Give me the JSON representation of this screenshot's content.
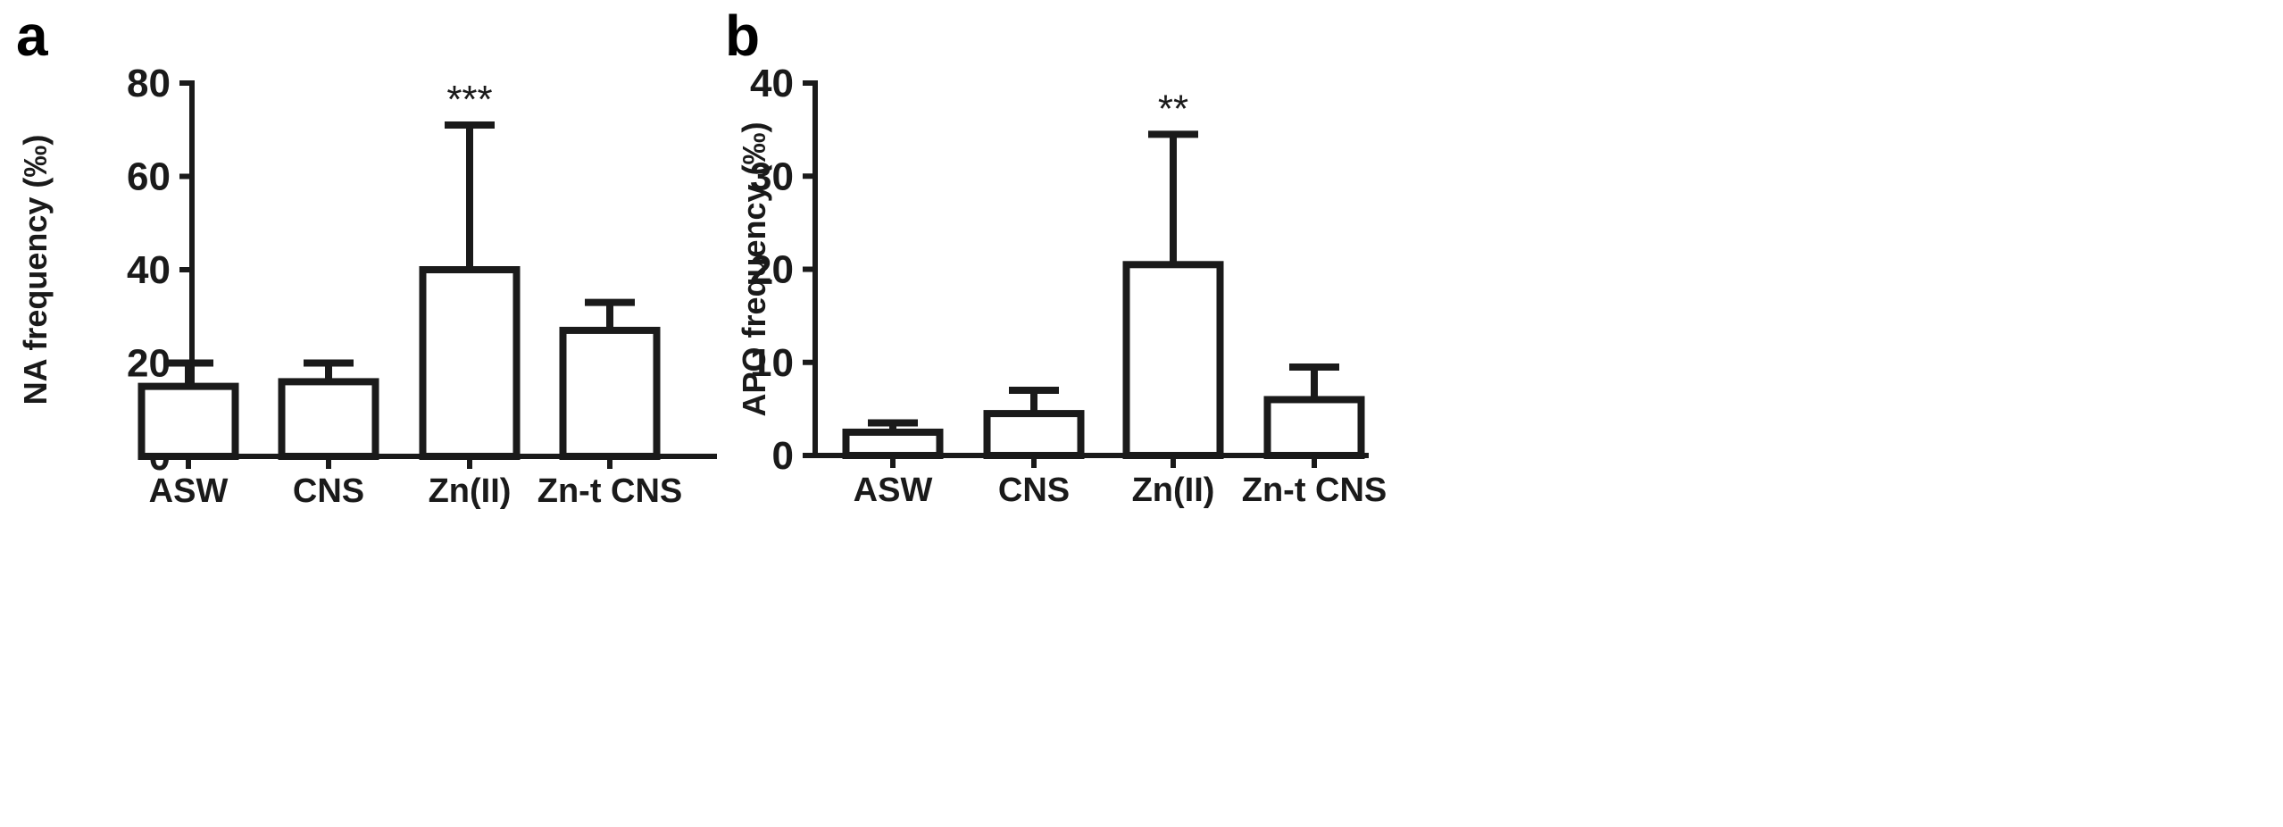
{
  "chart_data": [
    {
      "panel_label": "a",
      "type": "bar",
      "categories": [
        "ASW",
        "CNS",
        "Zn(II)",
        "Zn-t CNS"
      ],
      "values": [
        15,
        16,
        40,
        27
      ],
      "errors": [
        5,
        4,
        31,
        6
      ],
      "annotations": [
        "",
        "",
        "***",
        ""
      ],
      "ylabel": "NA frequency (‰)",
      "xlabel": "",
      "ylim": [
        0,
        80
      ],
      "yticks": [
        0,
        20,
        40,
        60,
        80
      ],
      "grid": false
    },
    {
      "panel_label": "b",
      "type": "bar",
      "categories": [
        "ASW",
        "CNS",
        "Zn(II)",
        "Zn-t CNS"
      ],
      "values": [
        2.5,
        4.5,
        20.5,
        6
      ],
      "errors": [
        1,
        2.5,
        14,
        3.5
      ],
      "annotations": [
        "",
        "",
        "**",
        ""
      ],
      "ylabel": "APO frequency (‰)",
      "xlabel": "",
      "ylim": [
        0,
        40
      ],
      "yticks": [
        0,
        10,
        20,
        30,
        40
      ],
      "grid": false
    }
  ],
  "colors": {
    "ink": "#1a1a1a",
    "bar_fill": "#ffffff"
  }
}
